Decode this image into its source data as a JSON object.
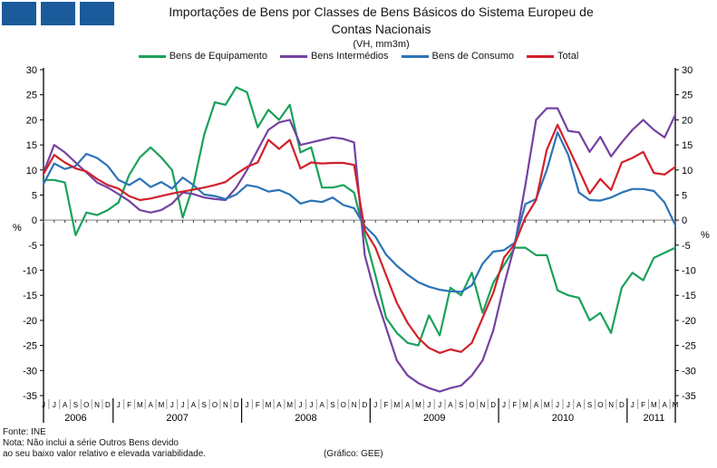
{
  "logo": {
    "color": "#1b5b9b"
  },
  "header": {
    "title_line1": "Importações de Bens por Classes de Bens Básicos do Sistema Europeu de",
    "title_line2": "Contas Nacionais",
    "subtitle": "(VH, mm3m)"
  },
  "footer": {
    "source": "Fonte: INE",
    "note_line1": "Nota: Não inclui a série Outros Bens devido",
    "note_line2": "ao seu baixo valor relativo e elevada variabilidade.",
    "credit": "(Gráfico: GEE)"
  },
  "chart_data": {
    "type": "line",
    "title": "Importações de Bens por Classes de Bens Básicos do Sistema Europeu de Contas Nacionais",
    "subtitle": "(VH, mm3m)",
    "ylabel": "%",
    "ylim": [
      -35,
      30
    ],
    "y_step": 5,
    "grid": "zero-line-only",
    "legend_position": "top",
    "x_labels": [
      "J",
      "J",
      "A",
      "S",
      "O",
      "N",
      "D",
      "J",
      "F",
      "M",
      "A",
      "M",
      "J",
      "J",
      "A",
      "S",
      "O",
      "N",
      "D",
      "J",
      "F",
      "M",
      "A",
      "M",
      "J",
      "J",
      "A",
      "S",
      "O",
      "N",
      "D",
      "J",
      "F",
      "M",
      "A",
      "M",
      "J",
      "J",
      "A",
      "S",
      "O",
      "N",
      "D",
      "J",
      "F",
      "M",
      "A",
      "M",
      "J",
      "J",
      "A",
      "S",
      "O",
      "N",
      "D",
      "J",
      "F",
      "M",
      "A",
      "M"
    ],
    "years": [
      {
        "label": "2006",
        "months": 7
      },
      {
        "label": "2007",
        "months": 12
      },
      {
        "label": "2008",
        "months": 12
      },
      {
        "label": "2009",
        "months": 12
      },
      {
        "label": "2010",
        "months": 12
      },
      {
        "label": "2011",
        "months": 5
      }
    ],
    "series": [
      {
        "name": "Bens de Equipamento",
        "color": "#1aa15a",
        "values": [
          8,
          8,
          7.5,
          -3,
          1.5,
          1,
          2,
          3.5,
          9,
          12.5,
          14.5,
          12.5,
          10,
          0.5,
          7,
          17,
          23.5,
          23,
          26.5,
          25.5,
          18.5,
          22,
          20,
          23,
          13.5,
          14.5,
          6.5,
          6.5,
          7,
          5.5,
          -3,
          -11,
          -19.5,
          -22.5,
          -24.5,
          -25,
          -19,
          -23,
          -13.5,
          -15,
          -10.5,
          -18.5,
          -12.5,
          -9,
          -5.5,
          -5.5,
          -7,
          -7,
          -14,
          -15,
          -15.5,
          -20,
          -18.5,
          -22.5,
          -13.5,
          -10.5,
          -12,
          -7.5,
          -6.5,
          -5.5
        ]
      },
      {
        "name": "Bens Intermédios",
        "color": "#7542a1",
        "values": [
          9.5,
          15,
          13.5,
          11.5,
          9.5,
          7.5,
          6.5,
          5.2,
          3.8,
          2,
          1.5,
          2,
          3.3,
          5.5,
          5.2,
          4.5,
          4.2,
          4,
          6.5,
          10,
          14,
          18,
          19.5,
          20,
          15,
          15.5,
          16,
          16.5,
          16.2,
          15.5,
          -7,
          -15,
          -21.5,
          -28,
          -31,
          -32.5,
          -33.5,
          -34.2,
          -33.5,
          -33,
          -31,
          -28,
          -22,
          -13,
          -5,
          7,
          20,
          22.3,
          22.3,
          17.8,
          17.5,
          13.6,
          16.6,
          12.7,
          15.5,
          18,
          20,
          18,
          16.5,
          21
        ]
      },
      {
        "name": "Bens de Consumo",
        "color": "#2b73b7",
        "values": [
          7.2,
          11.3,
          10.2,
          10.8,
          13.2,
          12.4,
          10.8,
          8,
          7,
          8.3,
          6.6,
          7.6,
          6.3,
          8.5,
          7,
          5.1,
          4.8,
          4.2,
          5.1,
          7,
          6.6,
          5.7,
          6,
          5.1,
          3.3,
          3.9,
          3.6,
          4.5,
          3,
          2.4,
          -1.2,
          -3.3,
          -6.9,
          -9.1,
          -10.9,
          -12.4,
          -13.3,
          -13.9,
          -14.2,
          -14.3,
          -13,
          -8.7,
          -6.3,
          -6,
          -4.5,
          3.2,
          4.2,
          10,
          17.5,
          13,
          5.5,
          4,
          3.9,
          4.5,
          5.5,
          6.2,
          6.2,
          5.8,
          3.5,
          -1
        ]
      },
      {
        "name": "Total",
        "color": "#d2202a",
        "values": [
          9.2,
          13,
          11.5,
          10.3,
          9.7,
          8.2,
          7,
          6.3,
          4.8,
          4,
          4.3,
          4.8,
          5.3,
          5.7,
          6.1,
          6.5,
          7,
          7.6,
          9.2,
          10.6,
          11.5,
          16,
          14.2,
          16,
          10.3,
          11.5,
          11.3,
          11.4,
          11.4,
          11,
          -2,
          -5.5,
          -11,
          -16.5,
          -20.5,
          -23.5,
          -25.5,
          -26.5,
          -25.8,
          -26.3,
          -24.5,
          -19.5,
          -14.5,
          -7.5,
          -4.8,
          0.5,
          4,
          14,
          19,
          14.5,
          10,
          5.3,
          8.2,
          6,
          11.5,
          12.4,
          13.6,
          9.4,
          9.1,
          10.6
        ]
      }
    ]
  }
}
